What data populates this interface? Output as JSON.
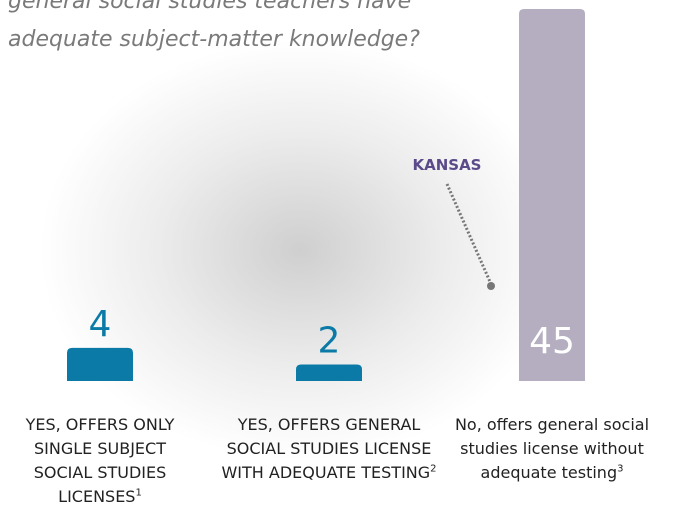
{
  "chart_data": {
    "type": "bar",
    "title": "general social studies teachers have adequate subject-matter knowledge?",
    "categories": [
      "YES, OFFERS ONLY SINGLE SUBJECT SOCIAL STUDIES LICENSES",
      "YES, OFFERS GENERAL SOCIAL STUDIES LICENSE WITH ADEQUATE TESTING",
      "No, offers general social studies license without adequate testing"
    ],
    "category_notes": [
      "1",
      "2",
      "3"
    ],
    "values": [
      4,
      2,
      45
    ],
    "colors": [
      "#0b7aa6",
      "#0b7aa6",
      "#b4aec0"
    ],
    "annotation": "KANSAS"
  }
}
